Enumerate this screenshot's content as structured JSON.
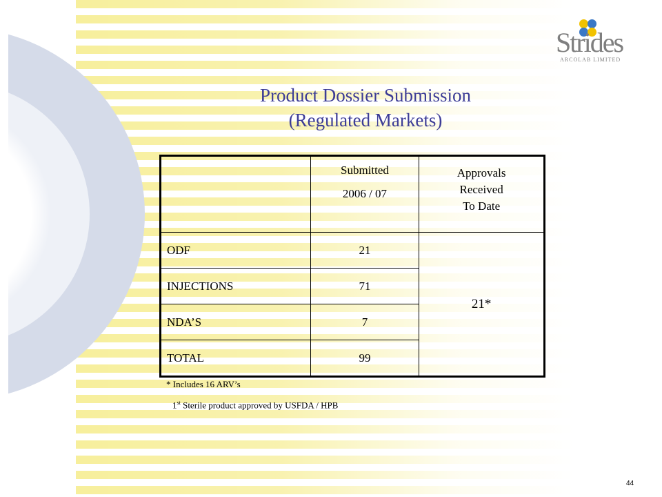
{
  "logo": {
    "name": "Strides",
    "subtitle": "ARCOLAB LIMITED",
    "dot_colors": [
      "#f2c200",
      "#3a78c6",
      "#3a78c6",
      "#f2c200"
    ]
  },
  "title": {
    "line1": "Product Dossier Submission",
    "line2": "(Regulated Markets)",
    "color": "#3c3c96"
  },
  "table": {
    "header": {
      "submitted_line1": "Submitted",
      "submitted_line2": "2006 / 07",
      "approvals_line1": "Approvals",
      "approvals_line2": "Received",
      "approvals_line3": "To Date"
    },
    "rows": [
      {
        "label": "ODF",
        "submitted": "21"
      },
      {
        "label": "INJECTIONS",
        "submitted": "71"
      },
      {
        "label": "NDA’S",
        "submitted": "7"
      },
      {
        "label": "TOTAL",
        "submitted": "99"
      }
    ],
    "approvals_total": "21*"
  },
  "footnotes": {
    "note1": "* Includes 16 ARV’s",
    "note2_prefix": "1",
    "note2_sup": "st",
    "note2_text": " Sterile product approved by USFDA / HPB"
  },
  "page_number": "44",
  "colors": {
    "stripe": "#f7ef9c",
    "circle": "#d5dbe9"
  }
}
